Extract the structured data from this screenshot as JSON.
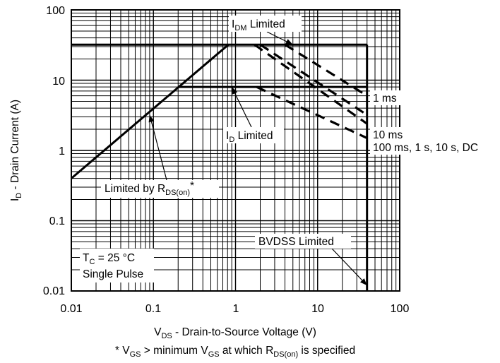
{
  "chart_data": {
    "type": "line",
    "title": "",
    "x_scale": "log",
    "y_scale": "log",
    "xlim": [
      0.01,
      100
    ],
    "ylim": [
      0.01,
      100
    ],
    "grid": true,
    "x_ticks": [
      "0.01",
      "0.1",
      "1",
      "10",
      "100"
    ],
    "y_ticks": [
      "0.01",
      "0.1",
      "1",
      "10",
      "100"
    ],
    "xlabel": {
      "main": "V",
      "sub": "DS",
      "rest": " - Drain-to-Source Voltage (V)"
    },
    "ylabel": {
      "main": "I",
      "sub": "D",
      "rest": " - Drain Current (A)"
    },
    "footnote": {
      "p1": "* V",
      "s1": "GS",
      "p2": " > minimum V",
      "s2": "GS",
      "p3": " at which R",
      "s3": "DS(on)",
      "p4": " is specified"
    },
    "series": [
      {
        "key": "rdson",
        "points": [
          [
            0.01,
            0.4
          ],
          [
            0.82,
            32
          ]
        ],
        "width": 3
      },
      {
        "key": "idm",
        "points": [
          [
            0.01,
            32
          ],
          [
            40,
            32
          ]
        ],
        "width": 3
      },
      {
        "key": "id",
        "points": [
          [
            0.2,
            8
          ],
          [
            40,
            8
          ]
        ],
        "width": 3
      },
      {
        "key": "bvdss",
        "points": [
          [
            40,
            0.01
          ],
          [
            40,
            32
          ]
        ],
        "width": 3
      },
      {
        "key": "1ms",
        "points": [
          [
            4.0,
            32
          ],
          [
            40,
            6.0
          ]
        ],
        "width": 3,
        "dash": true
      },
      {
        "key": "10ms",
        "points": [
          [
            2.0,
            32
          ],
          [
            40,
            3.2
          ]
        ],
        "width": 3,
        "dash": true
      },
      {
        "key": "100ms",
        "points": [
          [
            1.7,
            32
          ],
          [
            40,
            2.4
          ]
        ],
        "width": 3,
        "dash": true
      },
      {
        "key": "dc",
        "points": [
          [
            1.8,
            8
          ],
          [
            40,
            1.5
          ]
        ],
        "width": 3,
        "dash": true
      }
    ],
    "annotations": {
      "idm": {
        "main": "I",
        "sub": "DM",
        "rest": " Limited"
      },
      "id": {
        "main": "I",
        "sub": "D",
        "rest": " Limited"
      },
      "rdson": {
        "main": "Limited by R",
        "sub": "DS(on)",
        "rest": "*"
      },
      "bvdss": "BVDSS Limited",
      "tc": {
        "main": "T",
        "sub": "C",
        "rest": " = 25 °C"
      },
      "pulse": "Single Pulse",
      "ms1": "1 ms",
      "ms10": "10 ms",
      "ms100": "100 ms, 1 s, 10 s, DC"
    }
  }
}
